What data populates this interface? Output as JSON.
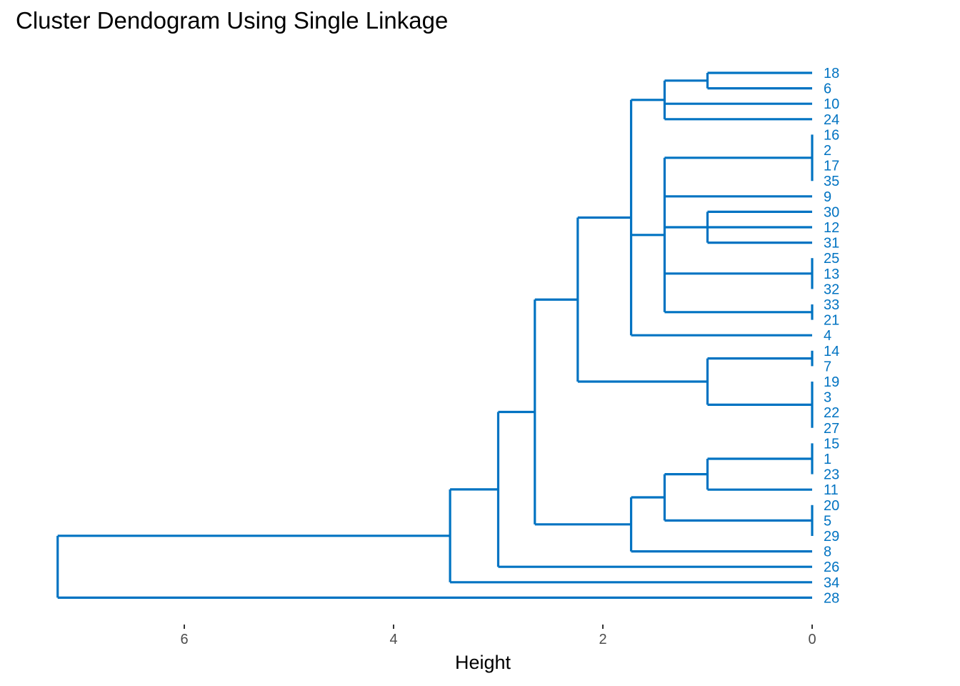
{
  "chart_data": {
    "type": "dendrogram",
    "title": "Cluster Dendogram Using Single Linkage",
    "xlabel": "Height",
    "ylabel": "",
    "x_reversed": true,
    "xlim": [
      7.25,
      0
    ],
    "x_ticks": [
      6,
      4,
      2,
      0
    ],
    "grid": false,
    "color": "#0073C2",
    "leaf_order": [
      "18",
      "6",
      "10",
      "24",
      "16",
      "2",
      "17",
      "35",
      "9",
      "30",
      "12",
      "31",
      "25",
      "13",
      "32",
      "33",
      "21",
      "4",
      "14",
      "7",
      "19",
      "3",
      "22",
      "27",
      "15",
      "1",
      "23",
      "11",
      "20",
      "5",
      "29",
      "8",
      "26",
      "34",
      "28"
    ],
    "merges": [
      {
        "id": "A1",
        "height": 1.0,
        "children": [
          "18",
          "6"
        ]
      },
      {
        "id": "A2",
        "height": 1.41,
        "children": [
          "A1",
          "10",
          "24"
        ]
      },
      {
        "id": "B1",
        "height": 0.0,
        "children": [
          "16",
          "2",
          "17",
          "35"
        ]
      },
      {
        "id": "B2",
        "height": 1.0,
        "children": [
          "30",
          "12",
          "31"
        ]
      },
      {
        "id": "B3",
        "height": 0.0,
        "children": [
          "25",
          "13",
          "32"
        ]
      },
      {
        "id": "B4",
        "height": 0.0,
        "children": [
          "33",
          "21"
        ]
      },
      {
        "id": "B5",
        "height": 1.41,
        "children": [
          "B1",
          "9",
          "B2",
          "B3",
          "B4"
        ]
      },
      {
        "id": "C1",
        "height": 1.73,
        "children": [
          "A2",
          "B5",
          "4"
        ]
      },
      {
        "id": "D1",
        "height": 0.0,
        "children": [
          "14",
          "7"
        ]
      },
      {
        "id": "D2",
        "height": 0.0,
        "children": [
          "19",
          "3",
          "22",
          "27"
        ]
      },
      {
        "id": "D3",
        "height": 1.0,
        "children": [
          "D1",
          "D2"
        ]
      },
      {
        "id": "E1",
        "height": 2.24,
        "children": [
          "C1",
          "D3"
        ]
      },
      {
        "id": "F1",
        "height": 0.0,
        "children": [
          "15",
          "1",
          "23"
        ]
      },
      {
        "id": "F2",
        "height": 1.0,
        "children": [
          "F1",
          "11"
        ]
      },
      {
        "id": "F3",
        "height": 0.0,
        "children": [
          "20",
          "5",
          "29"
        ]
      },
      {
        "id": "F4",
        "height": 1.41,
        "children": [
          "F2",
          "F3"
        ]
      },
      {
        "id": "F5",
        "height": 1.73,
        "children": [
          "F4",
          "8"
        ]
      },
      {
        "id": "G1",
        "height": 2.65,
        "children": [
          "E1",
          "F5"
        ]
      },
      {
        "id": "G2",
        "height": 3.0,
        "children": [
          "G1",
          "26"
        ]
      },
      {
        "id": "G3",
        "height": 3.46,
        "children": [
          "G2",
          "34"
        ]
      },
      {
        "id": "ROOT",
        "height": 7.21,
        "children": [
          "G3",
          "28"
        ]
      }
    ]
  }
}
